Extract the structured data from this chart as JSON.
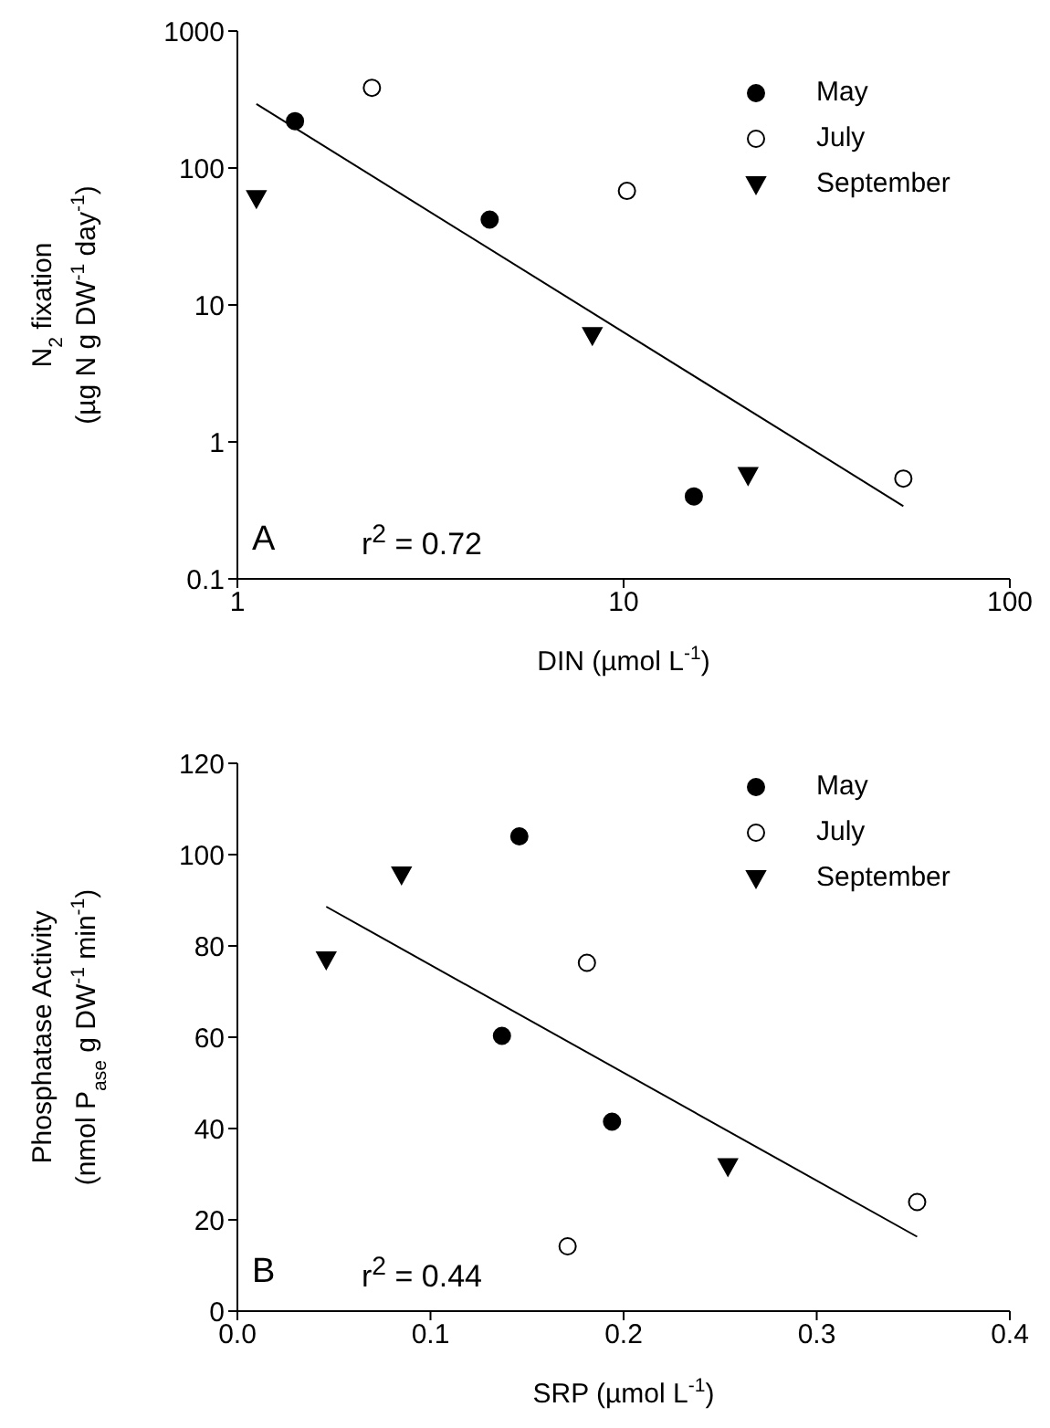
{
  "chart_data": [
    {
      "type": "scatter",
      "xlabel": "DIN (µmol L$^{-1}$)",
      "ylabel": "N$_{2}$ fixation\n(µg N g DW$^{-1}$ day$^{-1}$)",
      "log": "xy",
      "xlim": [
        1,
        100
      ],
      "xticks": [
        1,
        10,
        100
      ],
      "ylim": [
        0.1,
        1000
      ],
      "yticks": [
        0.1,
        1,
        10,
        100,
        1000
      ],
      "grid": false,
      "legend": "top right",
      "annotations": [
        "A",
        "r$^{2}$ = 0.72"
      ],
      "series": [
        {
          "name": "May",
          "color": "#000000",
          "marker": "circle",
          "x": [
            1.41,
            4.5,
            15.2
          ],
          "values": [
            220,
            42,
            0.4
          ]
        },
        {
          "name": "July",
          "color": "#ffffff",
          "marker": "circle",
          "x": [
            2.23,
            10.2,
            53
          ],
          "values": [
            385,
            68,
            0.54
          ]
        },
        {
          "name": "September",
          "color": "#000000",
          "marker": "triangle",
          "x": [
            1.12,
            8.3,
            21
          ],
          "values": [
            60,
            6,
            0.57
          ]
        },
        {
          "type": "line",
          "color": "#000000",
          "marker": "none",
          "x": [
            1.12,
            53
          ],
          "values": [
            293,
            0.34
          ]
        }
      ]
    },
    {
      "type": "scatter",
      "xlabel": "SRP (µmol L$^{-1}$)",
      "ylabel": "Phosphatase Activity\n(nmol P$_{ase}$ g DW$^{-1}$ min$^{-1}$)",
      "xlim": [
        0,
        0.4
      ],
      "xticks": [
        {
          "value": 0,
          "label": "0.0"
        },
        0.1,
        0.2,
        0.3,
        0.4
      ],
      "ylim": [
        0,
        120
      ],
      "yticks": [
        0,
        20,
        40,
        60,
        80,
        100,
        120
      ],
      "grid": false,
      "legend": "top right",
      "annotations": [
        "B",
        "r$^{2}$ = 0.44"
      ],
      "series": [
        {
          "name": "May",
          "color": "#000000",
          "marker": "circle",
          "x": [
            0.146,
            0.137,
            0.194
          ],
          "values": [
            104,
            60.3,
            41.5
          ]
        },
        {
          "name": "July",
          "color": "#ffffff",
          "marker": "circle",
          "x": [
            0.181,
            0.171,
            0.352
          ],
          "values": [
            76.3,
            14.2,
            23.9
          ]
        },
        {
          "name": "September",
          "color": "#000000",
          "marker": "triangle",
          "x": [
            0.046,
            0.085,
            0.254
          ],
          "values": [
            77,
            95.6,
            31.7
          ]
        },
        {
          "type": "line",
          "color": "#000000",
          "marker": "none",
          "x": [
            0.046,
            0.352
          ],
          "values": [
            88.6,
            16.3
          ]
        }
      ]
    }
  ]
}
